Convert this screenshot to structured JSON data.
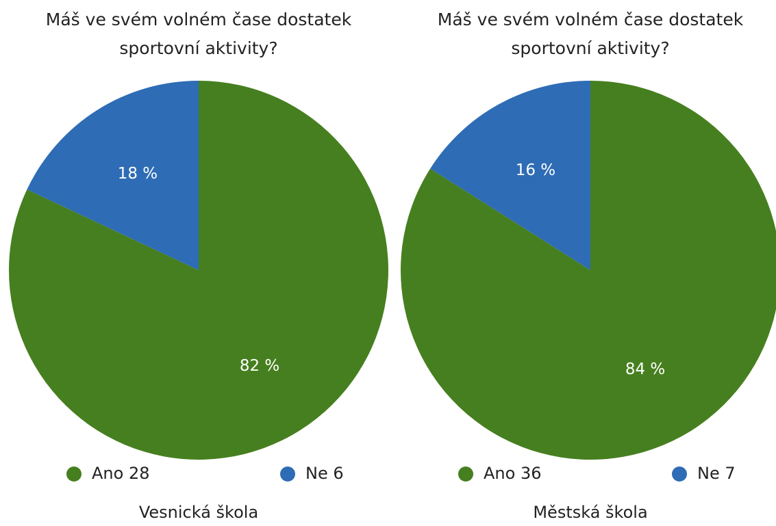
{
  "chart_data": [
    {
      "type": "pie",
      "title": "Máš ve svém volném čase dostatek sportovní aktivity?",
      "categories": [
        "Ano 28",
        "Ne 6"
      ],
      "values": [
        82,
        18
      ],
      "value_labels": [
        "82 %",
        "18 %"
      ],
      "colors": [
        "#467f1f",
        "#2e6cb5"
      ],
      "xlabel": "Vesnická škola"
    },
    {
      "type": "pie",
      "title": "Máš ve svém volném čase dostatek sportovní aktivity?",
      "categories": [
        "Ano 36",
        "Ne 7"
      ],
      "values": [
        84,
        16
      ],
      "value_labels": [
        "84 %",
        "16 %"
      ],
      "colors": [
        "#467f1f",
        "#2e6cb5"
      ],
      "xlabel": "Městská škola"
    }
  ]
}
